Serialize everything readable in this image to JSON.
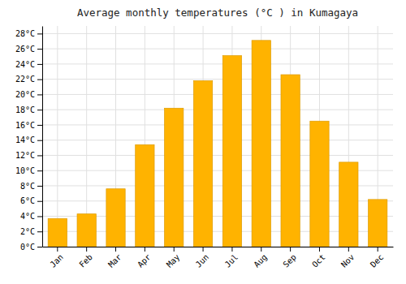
{
  "chart_data": {
    "type": "bar",
    "title": "Average monthly temperatures (°C ) in Kumagaya",
    "categories": [
      "Jan",
      "Feb",
      "Mar",
      "Apr",
      "May",
      "Jun",
      "Jul",
      "Aug",
      "Sep",
      "Oct",
      "Nov",
      "Dec"
    ],
    "values": [
      3.7,
      4.3,
      7.6,
      13.4,
      18.2,
      21.8,
      25.1,
      27.1,
      22.6,
      16.5,
      11.1,
      6.2
    ],
    "color": "#FFB300",
    "ylim": [
      0,
      29
    ],
    "yticks": [
      {
        "value": 0,
        "label": "0°C"
      },
      {
        "value": 2,
        "label": "2°C"
      },
      {
        "value": 4,
        "label": "4°C"
      },
      {
        "value": 6,
        "label": "6°C"
      },
      {
        "value": 8,
        "label": "8°C"
      },
      {
        "value": 10,
        "label": "10°C"
      },
      {
        "value": 12,
        "label": "12°C"
      },
      {
        "value": 14,
        "label": "14°C"
      },
      {
        "value": 16,
        "label": "16°C"
      },
      {
        "value": 18,
        "label": "18°C"
      },
      {
        "value": 20,
        "label": "20°C"
      },
      {
        "value": 22,
        "label": "22°C"
      },
      {
        "value": 24,
        "label": "24°C"
      },
      {
        "value": 26,
        "label": "26°C"
      },
      {
        "value": 28,
        "label": "28°C"
      }
    ],
    "grid": true
  }
}
